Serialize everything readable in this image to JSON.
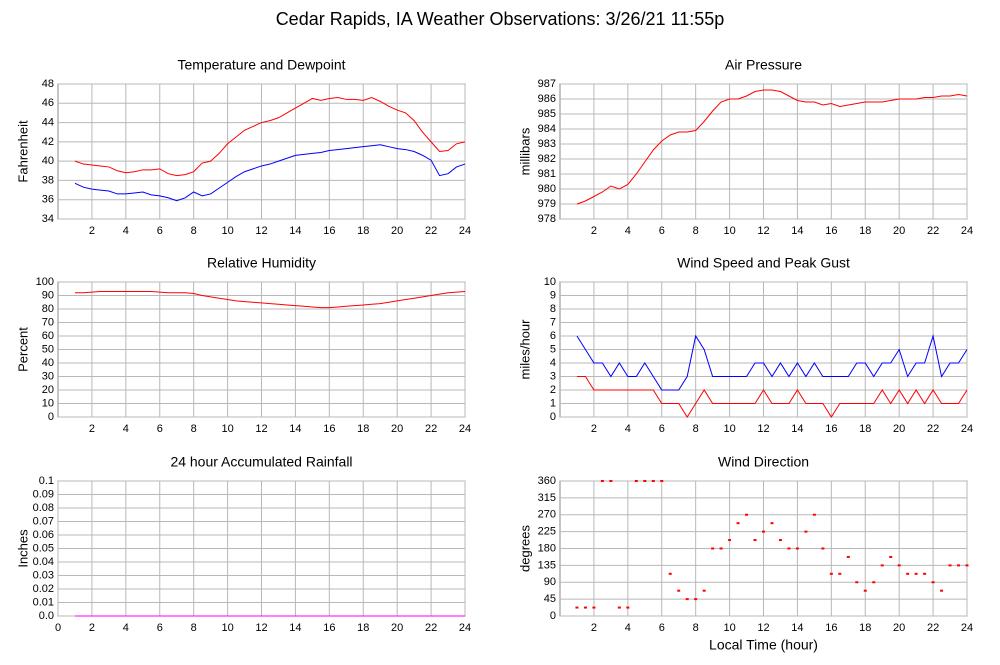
{
  "title": "Cedar Rapids, IA Weather Observations: 3/26/21 11:55p",
  "chart_data": [
    {
      "type": "line",
      "title": "Temperature and Dewpoint",
      "y_label": "Fahrenheit",
      "x": [
        1,
        1.5,
        2,
        2.5,
        3,
        3.5,
        4,
        4.5,
        5,
        5.5,
        6,
        6.5,
        7,
        7.5,
        8,
        8.5,
        9,
        9.5,
        10,
        10.5,
        11,
        11.5,
        12,
        12.5,
        13,
        13.5,
        14,
        14.5,
        15,
        15.5,
        16,
        16.5,
        17,
        17.5,
        18,
        18.5,
        19,
        19.5,
        20,
        20.5,
        21,
        21.5,
        22,
        22.5,
        23,
        23.5,
        24
      ],
      "series": [
        {
          "color": "#ff0000",
          "values": [
            40,
            39.7,
            39.6,
            39.5,
            39.4,
            39.0,
            38.8,
            38.9,
            39.1,
            39.1,
            39.2,
            38.7,
            38.5,
            38.6,
            38.9,
            39.8,
            40,
            40.8,
            41.8,
            42.5,
            43.2,
            43.6,
            44,
            44.2,
            44.5,
            45,
            45.5,
            46,
            46.5,
            46.3,
            46.5,
            46.6,
            46.4,
            46.4,
            46.3,
            46.6,
            46.2,
            45.7,
            45.3,
            45,
            44.2,
            43,
            42,
            41,
            41.1,
            41.8,
            42
          ]
        },
        {
          "color": "#0000ff",
          "values": [
            37.7,
            37.3,
            37.1,
            37,
            36.9,
            36.6,
            36.6,
            36.7,
            36.8,
            36.5,
            36.4,
            36.2,
            35.9,
            36.2,
            36.8,
            36.4,
            36.6,
            37.2,
            37.8,
            38.4,
            38.9,
            39.2,
            39.5,
            39.7,
            40,
            40.3,
            40.6,
            40.7,
            40.8,
            40.9,
            41.1,
            41.2,
            41.3,
            41.4,
            41.5,
            41.6,
            41.7,
            41.5,
            41.3,
            41.2,
            41,
            40.6,
            40.1,
            38.5,
            38.7,
            39.4,
            39.7
          ]
        }
      ],
      "xlim": [
        0,
        24
      ],
      "xticks": [
        2,
        4,
        6,
        8,
        10,
        12,
        14,
        16,
        18,
        20,
        22,
        24
      ],
      "ylim": [
        34,
        48
      ],
      "yticks": [
        34,
        36,
        38,
        40,
        42,
        44,
        46,
        48
      ],
      "grid": true
    },
    {
      "type": "line",
      "title": "Air Pressure",
      "y_label": "millibars",
      "x": [
        1,
        1.5,
        2,
        2.5,
        3,
        3.5,
        4,
        4.5,
        5,
        5.5,
        6,
        6.5,
        7,
        7.5,
        8,
        8.5,
        9,
        9.5,
        10,
        10.5,
        11,
        11.5,
        12,
        12.5,
        13,
        13.5,
        14,
        14.5,
        15,
        15.5,
        16,
        16.5,
        17,
        17.5,
        18,
        18.5,
        19,
        19.5,
        20,
        20.5,
        21,
        21.5,
        22,
        22.5,
        23,
        23.5,
        24
      ],
      "series": [
        {
          "color": "#ff0000",
          "values": [
            979,
            979.2,
            979.5,
            979.8,
            980.2,
            980,
            980.3,
            981,
            981.8,
            982.6,
            983.2,
            983.6,
            983.8,
            983.8,
            983.9,
            984.5,
            985.2,
            985.8,
            986,
            986,
            986.2,
            986.5,
            986.6,
            986.6,
            986.5,
            986.2,
            985.9,
            985.8,
            985.8,
            985.6,
            985.7,
            985.5,
            985.6,
            985.7,
            985.8,
            985.8,
            985.8,
            985.9,
            986,
            986,
            986,
            986.1,
            986.1,
            986.2,
            986.2,
            986.3,
            986.2
          ]
        }
      ],
      "xlim": [
        0,
        24
      ],
      "xticks": [
        2,
        4,
        6,
        8,
        10,
        12,
        14,
        16,
        18,
        20,
        22,
        24
      ],
      "ylim": [
        978,
        987
      ],
      "yticks": [
        978,
        979,
        980,
        981,
        982,
        983,
        984,
        985,
        986,
        987
      ],
      "grid": true
    },
    {
      "type": "line",
      "title": "Relative Humidity",
      "y_label": "Percent",
      "x": [
        1,
        1.5,
        2,
        2.5,
        3,
        3.5,
        4,
        4.5,
        5,
        5.5,
        6,
        6.5,
        7,
        7.5,
        8,
        8.5,
        9,
        9.5,
        10,
        10.5,
        11,
        11.5,
        12,
        12.5,
        13,
        13.5,
        14,
        14.5,
        15,
        15.5,
        16,
        16.5,
        17,
        17.5,
        18,
        18.5,
        19,
        19.5,
        20,
        20.5,
        21,
        21.5,
        22,
        22.5,
        23,
        23.5,
        24
      ],
      "series": [
        {
          "color": "#ff0000",
          "values": [
            92,
            92,
            92.5,
            93,
            93,
            93,
            93,
            93,
            93,
            93,
            92.5,
            92,
            92,
            92,
            91.5,
            90,
            89,
            88,
            87,
            86,
            85.5,
            85,
            84.5,
            84,
            83.5,
            83,
            82.5,
            82,
            81.5,
            81,
            81,
            81.5,
            82,
            82.5,
            83,
            83.5,
            84,
            85,
            86,
            87,
            88,
            89,
            90,
            91,
            92,
            92.5,
            93
          ]
        }
      ],
      "xlim": [
        0,
        24
      ],
      "xticks": [
        2,
        4,
        6,
        8,
        10,
        12,
        14,
        16,
        18,
        20,
        22,
        24
      ],
      "ylim": [
        0,
        100
      ],
      "yticks": [
        0,
        10,
        20,
        30,
        40,
        50,
        60,
        70,
        80,
        90,
        100
      ],
      "grid": true
    },
    {
      "type": "line",
      "title": "Wind Speed and Peak Gust",
      "y_label": "miles/hour",
      "x": [
        1,
        1.5,
        2,
        2.5,
        3,
        3.5,
        4,
        4.5,
        5,
        5.5,
        6,
        6.5,
        7,
        7.5,
        8,
        8.5,
        9,
        9.5,
        10,
        10.5,
        11,
        11.5,
        12,
        12.5,
        13,
        13.5,
        14,
        14.5,
        15,
        15.5,
        16,
        16.5,
        17,
        17.5,
        18,
        18.5,
        19,
        19.5,
        20,
        20.5,
        21,
        21.5,
        22,
        22.5,
        23,
        23.5,
        24
      ],
      "series": [
        {
          "color": "#0000ff",
          "values": [
            6,
            5,
            4,
            4,
            3,
            4,
            3,
            3,
            4,
            3,
            2,
            2,
            2,
            3,
            6,
            5,
            3,
            3,
            3,
            3,
            3,
            4,
            4,
            3,
            4,
            3,
            4,
            3,
            4,
            3,
            3,
            3,
            3,
            4,
            4,
            3,
            4,
            4,
            5,
            3,
            4,
            4,
            6,
            3,
            4,
            4,
            5
          ]
        },
        {
          "color": "#ff0000",
          "values": [
            3,
            3,
            2,
            2,
            2,
            2,
            2,
            2,
            2,
            2,
            1,
            1,
            1,
            0,
            1,
            2,
            1,
            1,
            1,
            1,
            1,
            1,
            2,
            1,
            1,
            1,
            2,
            1,
            1,
            1,
            0,
            1,
            1,
            1,
            1,
            1,
            2,
            1,
            2,
            1,
            2,
            1,
            2,
            1,
            1,
            1,
            2
          ]
        }
      ],
      "xlim": [
        0,
        24
      ],
      "xticks": [
        2,
        4,
        6,
        8,
        10,
        12,
        14,
        16,
        18,
        20,
        22,
        24
      ],
      "ylim": [
        0,
        10
      ],
      "yticks": [
        0,
        1,
        2,
        3,
        4,
        5,
        6,
        7,
        8,
        9,
        10
      ],
      "grid": true
    },
    {
      "type": "line",
      "title": "24 hour Accumulated Rainfall",
      "y_label": "Inches",
      "x": [
        1,
        24
      ],
      "series": [
        {
          "color": "#ff00ff",
          "values": [
            0,
            0
          ]
        }
      ],
      "xlim": [
        0,
        24
      ],
      "xticks": [
        0,
        2,
        4,
        6,
        8,
        10,
        12,
        14,
        16,
        18,
        20,
        22,
        24
      ],
      "ylim": [
        0,
        0.1
      ],
      "yticks": [
        {
          "value": 0,
          "label": "0.0"
        },
        0.01,
        0.02,
        0.03,
        0.04,
        0.05,
        0.06,
        0.07,
        0.08,
        0.09,
        0.1
      ],
      "grid": true
    },
    {
      "type": "scatter",
      "title": "Wind Direction",
      "y_label": "degrees",
      "x_label": "Local Time (hour)",
      "x": [
        1,
        1.5,
        2,
        2.5,
        3,
        3.5,
        4,
        4.5,
        5,
        5.5,
        6,
        6.5,
        7,
        7.5,
        8,
        8.5,
        9,
        9.5,
        10,
        10.5,
        11,
        11.5,
        12,
        12.5,
        13,
        13.5,
        14,
        14.5,
        15,
        15.5,
        16,
        16.5,
        17,
        17.5,
        18,
        18.5,
        19,
        19.5,
        20,
        20.5,
        21,
        21.5,
        22,
        22.5,
        23,
        23.5,
        24
      ],
      "series": [
        {
          "color": "#ff0000",
          "values": [
            22.5,
            22.5,
            22.5,
            360,
            360,
            22.5,
            22.5,
            360,
            360,
            360,
            360,
            112.5,
            67.5,
            45,
            45,
            67.5,
            180,
            180,
            202.5,
            247.5,
            270,
            202.5,
            225,
            247.5,
            202.5,
            180,
            180,
            225,
            270,
            180,
            112.5,
            112.5,
            157.5,
            90,
            67.5,
            90,
            135,
            157.5,
            135,
            112.5,
            112.5,
            112.5,
            90,
            67.5,
            135,
            135,
            135
          ]
        }
      ],
      "xlim": [
        0,
        24
      ],
      "xticks": [
        2,
        4,
        6,
        8,
        10,
        12,
        14,
        16,
        18,
        20,
        22,
        24
      ],
      "ylim": [
        0,
        360
      ],
      "yticks": [
        0,
        45,
        90,
        135,
        180,
        225,
        270,
        315,
        360
      ],
      "grid": true
    }
  ]
}
